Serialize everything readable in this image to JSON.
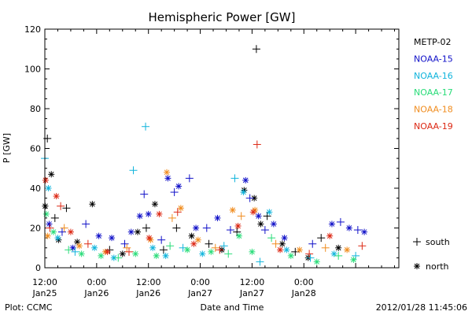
{
  "chart_data": {
    "type": "scatter",
    "title": "Hemispheric Power [GW]",
    "ylabel": "P [GW]",
    "xlabel": "Date and Time",
    "ylim": [
      0,
      120
    ],
    "yticks": [
      0,
      20,
      40,
      60,
      80,
      100,
      120
    ],
    "xlim": [
      "2012-01-25 12:00",
      "2012-01-28 22:00"
    ],
    "xticks": [
      {
        "time": "2012-01-25 12:00",
        "label1": "12:00",
        "label2": "Jan25"
      },
      {
        "time": "2012-01-26 00:00",
        "label1": "0:00",
        "label2": "Jan26"
      },
      {
        "time": "2012-01-26 12:00",
        "label1": "12:00",
        "label2": "Jan26"
      },
      {
        "time": "2012-01-27 00:00",
        "label1": "0:00",
        "label2": "Jan27"
      },
      {
        "time": "2012-01-27 12:00",
        "label1": "12:00",
        "label2": "Jan27"
      },
      {
        "time": "2012-01-28 00:00",
        "label1": "0:00",
        "label2": "Jan28"
      }
    ],
    "grid": false,
    "legend_position": "right",
    "series": [
      {
        "name": "METP-02",
        "color": "#000000",
        "points": [
          {
            "x": "2012-01-25 12:05",
            "y": 31,
            "hemi": "north"
          },
          {
            "x": "2012-01-25 12:35",
            "y": 65,
            "hemi": "south"
          },
          {
            "x": "2012-01-25 13:30",
            "y": 47,
            "hemi": "north"
          },
          {
            "x": "2012-01-25 14:20",
            "y": 25,
            "hemi": "south"
          },
          {
            "x": "2012-01-25 15:10",
            "y": 14,
            "hemi": "north"
          },
          {
            "x": "2012-01-25 17:00",
            "y": 30,
            "hemi": "south"
          },
          {
            "x": "2012-01-25 19:30",
            "y": 13,
            "hemi": "north"
          },
          {
            "x": "2012-01-25 23:00",
            "y": 32,
            "hemi": "north"
          },
          {
            "x": "2012-01-26 03:00",
            "y": 9,
            "hemi": "south"
          },
          {
            "x": "2012-01-26 06:00",
            "y": 7,
            "hemi": "north"
          },
          {
            "x": "2012-01-26 09:30",
            "y": 18,
            "hemi": "north"
          },
          {
            "x": "2012-01-26 11:30",
            "y": 20,
            "hemi": "south"
          },
          {
            "x": "2012-01-26 13:30",
            "y": 32,
            "hemi": "north"
          },
          {
            "x": "2012-01-26 15:30",
            "y": 9,
            "hemi": "south"
          },
          {
            "x": "2012-01-26 18:30",
            "y": 20,
            "hemi": "south"
          },
          {
            "x": "2012-01-26 22:00",
            "y": 16,
            "hemi": "north"
          },
          {
            "x": "2012-01-27 02:00",
            "y": 12,
            "hemi": "south"
          },
          {
            "x": "2012-01-27 05:00",
            "y": 9,
            "hemi": "north"
          },
          {
            "x": "2012-01-27 08:30",
            "y": 18,
            "hemi": "south"
          },
          {
            "x": "2012-01-27 10:10",
            "y": 39,
            "hemi": "north"
          },
          {
            "x": "2012-01-27 12:30",
            "y": 35,
            "hemi": "north"
          },
          {
            "x": "2012-01-27 13:00",
            "y": 110,
            "hemi": "south"
          },
          {
            "x": "2012-01-27 14:00",
            "y": 22,
            "hemi": "north"
          },
          {
            "x": "2012-01-27 15:30",
            "y": 26,
            "hemi": "south"
          },
          {
            "x": "2012-01-27 19:00",
            "y": 12,
            "hemi": "north"
          },
          {
            "x": "2012-01-27 22:00",
            "y": 8,
            "hemi": "south"
          },
          {
            "x": "2012-01-28 01:00",
            "y": 5,
            "hemi": "north"
          },
          {
            "x": "2012-01-28 04:00",
            "y": 15,
            "hemi": "south"
          },
          {
            "x": "2012-01-28 08:00",
            "y": 10,
            "hemi": "north"
          }
        ]
      },
      {
        "name": "NOAA-15",
        "color": "#1010c8",
        "points": [
          {
            "x": "2012-01-25 13:00",
            "y": 22,
            "hemi": "north"
          },
          {
            "x": "2012-01-25 16:00",
            "y": 18,
            "hemi": "south"
          },
          {
            "x": "2012-01-25 18:30",
            "y": 10,
            "hemi": "north"
          },
          {
            "x": "2012-01-25 21:30",
            "y": 22,
            "hemi": "south"
          },
          {
            "x": "2012-01-26 00:30",
            "y": 16,
            "hemi": "north"
          },
          {
            "x": "2012-01-26 03:30",
            "y": 15,
            "hemi": "north"
          },
          {
            "x": "2012-01-26 06:30",
            "y": 12,
            "hemi": "south"
          },
          {
            "x": "2012-01-26 08:00",
            "y": 18,
            "hemi": "north"
          },
          {
            "x": "2012-01-26 10:00",
            "y": 26,
            "hemi": "north"
          },
          {
            "x": "2012-01-26 11:00",
            "y": 37,
            "hemi": "south"
          },
          {
            "x": "2012-01-26 12:00",
            "y": 27,
            "hemi": "north"
          },
          {
            "x": "2012-01-26 15:00",
            "y": 14,
            "hemi": "south"
          },
          {
            "x": "2012-01-26 16:30",
            "y": 45,
            "hemi": "north"
          },
          {
            "x": "2012-01-26 18:00",
            "y": 38,
            "hemi": "south"
          },
          {
            "x": "2012-01-26 19:00",
            "y": 41,
            "hemi": "north"
          },
          {
            "x": "2012-01-26 21:30",
            "y": 45,
            "hemi": "south"
          },
          {
            "x": "2012-01-26 23:00",
            "y": 20,
            "hemi": "north"
          },
          {
            "x": "2012-01-27 01:30",
            "y": 20,
            "hemi": "south"
          },
          {
            "x": "2012-01-27 04:00",
            "y": 25,
            "hemi": "north"
          },
          {
            "x": "2012-01-27 07:00",
            "y": 19,
            "hemi": "south"
          },
          {
            "x": "2012-01-27 10:30",
            "y": 44,
            "hemi": "north"
          },
          {
            "x": "2012-01-27 11:30",
            "y": 35,
            "hemi": "south"
          },
          {
            "x": "2012-01-27 13:30",
            "y": 26,
            "hemi": "north"
          },
          {
            "x": "2012-01-27 15:00",
            "y": 19,
            "hemi": "south"
          },
          {
            "x": "2012-01-27 17:00",
            "y": 22,
            "hemi": "north"
          },
          {
            "x": "2012-01-27 19:30",
            "y": 15,
            "hemi": "north"
          },
          {
            "x": "2012-01-28 02:00",
            "y": 12,
            "hemi": "south"
          },
          {
            "x": "2012-01-28 06:30",
            "y": 22,
            "hemi": "north"
          },
          {
            "x": "2012-01-28 08:30",
            "y": 23,
            "hemi": "south"
          },
          {
            "x": "2012-01-28 10:30",
            "y": 20,
            "hemi": "north"
          },
          {
            "x": "2012-01-28 12:30",
            "y": 19,
            "hemi": "south"
          },
          {
            "x": "2012-01-28 14:00",
            "y": 18,
            "hemi": "north"
          }
        ]
      },
      {
        "name": "NOAA-16",
        "color": "#10b4dc",
        "points": [
          {
            "x": "2012-01-25 12:00",
            "y": 55,
            "hemi": "south"
          },
          {
            "x": "2012-01-25 12:50",
            "y": 40,
            "hemi": "north"
          },
          {
            "x": "2012-01-25 15:00",
            "y": 15,
            "hemi": "north"
          },
          {
            "x": "2012-01-25 19:00",
            "y": 8,
            "hemi": "south"
          },
          {
            "x": "2012-01-25 23:30",
            "y": 10,
            "hemi": "north"
          },
          {
            "x": "2012-01-26 04:00",
            "y": 5,
            "hemi": "north"
          },
          {
            "x": "2012-01-26 08:30",
            "y": 49,
            "hemi": "south"
          },
          {
            "x": "2012-01-26 11:20",
            "y": 71,
            "hemi": "south"
          },
          {
            "x": "2012-01-26 13:00",
            "y": 10,
            "hemi": "north"
          },
          {
            "x": "2012-01-26 16:00",
            "y": 6,
            "hemi": "north"
          },
          {
            "x": "2012-01-26 20:00",
            "y": 10,
            "hemi": "south"
          },
          {
            "x": "2012-01-27 00:30",
            "y": 7,
            "hemi": "north"
          },
          {
            "x": "2012-01-27 05:30",
            "y": 11,
            "hemi": "south"
          },
          {
            "x": "2012-01-27 08:00",
            "y": 45,
            "hemi": "south"
          },
          {
            "x": "2012-01-27 10:00",
            "y": 38,
            "hemi": "north"
          },
          {
            "x": "2012-01-27 13:50",
            "y": 3,
            "hemi": "south"
          },
          {
            "x": "2012-01-27 16:00",
            "y": 28,
            "hemi": "north"
          },
          {
            "x": "2012-01-27 20:00",
            "y": 9,
            "hemi": "north"
          },
          {
            "x": "2012-01-28 01:30",
            "y": 5,
            "hemi": "south"
          },
          {
            "x": "2012-01-28 07:00",
            "y": 7,
            "hemi": "north"
          },
          {
            "x": "2012-01-28 12:00",
            "y": 6,
            "hemi": "south"
          }
        ]
      },
      {
        "name": "NOAA-17",
        "color": "#28dc78",
        "points": [
          {
            "x": "2012-01-25 12:20",
            "y": 27,
            "hemi": "north"
          },
          {
            "x": "2012-01-25 14:00",
            "y": 18,
            "hemi": "north"
          },
          {
            "x": "2012-01-25 17:30",
            "y": 9,
            "hemi": "south"
          },
          {
            "x": "2012-01-25 20:30",
            "y": 7,
            "hemi": "north"
          },
          {
            "x": "2012-01-26 01:00",
            "y": 6,
            "hemi": "north"
          },
          {
            "x": "2012-01-26 05:00",
            "y": 5,
            "hemi": "south"
          },
          {
            "x": "2012-01-26 09:00",
            "y": 7,
            "hemi": "north"
          },
          {
            "x": "2012-01-26 13:50",
            "y": 6,
            "hemi": "north"
          },
          {
            "x": "2012-01-26 17:00",
            "y": 11,
            "hemi": "south"
          },
          {
            "x": "2012-01-26 21:00",
            "y": 9,
            "hemi": "north"
          },
          {
            "x": "2012-01-27 02:30",
            "y": 8,
            "hemi": "north"
          },
          {
            "x": "2012-01-27 06:30",
            "y": 7,
            "hemi": "south"
          },
          {
            "x": "2012-01-27 09:00",
            "y": 16,
            "hemi": "north"
          },
          {
            "x": "2012-01-27 12:00",
            "y": 8,
            "hemi": "north"
          },
          {
            "x": "2012-01-27 16:30",
            "y": 15,
            "hemi": "south"
          },
          {
            "x": "2012-01-27 21:00",
            "y": 6,
            "hemi": "north"
          },
          {
            "x": "2012-01-28 03:00",
            "y": 3,
            "hemi": "north"
          },
          {
            "x": "2012-01-28 08:00",
            "y": 6,
            "hemi": "south"
          },
          {
            "x": "2012-01-28 11:30",
            "y": 4,
            "hemi": "north"
          }
        ]
      },
      {
        "name": "NOAA-18",
        "color": "#f08c1e",
        "points": [
          {
            "x": "2012-01-25 12:40",
            "y": 16,
            "hemi": "north"
          },
          {
            "x": "2012-01-25 16:30",
            "y": 20,
            "hemi": "south"
          },
          {
            "x": "2012-01-25 20:00",
            "y": 11,
            "hemi": "north"
          },
          {
            "x": "2012-01-26 02:00",
            "y": 8,
            "hemi": "north"
          },
          {
            "x": "2012-01-26 07:00",
            "y": 10,
            "hemi": "south"
          },
          {
            "x": "2012-01-26 12:30",
            "y": 14,
            "hemi": "north"
          },
          {
            "x": "2012-01-26 16:15",
            "y": 48,
            "hemi": "north"
          },
          {
            "x": "2012-01-26 17:30",
            "y": 25,
            "hemi": "south"
          },
          {
            "x": "2012-01-26 19:30",
            "y": 30,
            "hemi": "north"
          },
          {
            "x": "2012-01-26 23:30",
            "y": 14,
            "hemi": "north"
          },
          {
            "x": "2012-01-27 03:30",
            "y": 10,
            "hemi": "south"
          },
          {
            "x": "2012-01-27 07:30",
            "y": 29,
            "hemi": "north"
          },
          {
            "x": "2012-01-27 09:30",
            "y": 26,
            "hemi": "south"
          },
          {
            "x": "2012-01-27 12:40",
            "y": 29,
            "hemi": "north"
          },
          {
            "x": "2012-01-27 17:30",
            "y": 12,
            "hemi": "south"
          },
          {
            "x": "2012-01-27 23:00",
            "y": 9,
            "hemi": "north"
          },
          {
            "x": "2012-01-28 05:00",
            "y": 10,
            "hemi": "south"
          },
          {
            "x": "2012-01-28 10:00",
            "y": 9,
            "hemi": "north"
          }
        ]
      },
      {
        "name": "NOAA-19",
        "color": "#dc2814",
        "points": [
          {
            "x": "2012-01-25 12:10",
            "y": 44,
            "hemi": "north"
          },
          {
            "x": "2012-01-25 13:10",
            "y": 20,
            "hemi": "south"
          },
          {
            "x": "2012-01-25 14:40",
            "y": 36,
            "hemi": "north"
          },
          {
            "x": "2012-01-25 15:40",
            "y": 31,
            "hemi": "south"
          },
          {
            "x": "2012-01-25 18:00",
            "y": 18,
            "hemi": "north"
          },
          {
            "x": "2012-01-25 22:00",
            "y": 12,
            "hemi": "south"
          },
          {
            "x": "2012-01-26 02:30",
            "y": 8,
            "hemi": "north"
          },
          {
            "x": "2012-01-26 07:30",
            "y": 8,
            "hemi": "south"
          },
          {
            "x": "2012-01-26 12:10",
            "y": 15,
            "hemi": "north"
          },
          {
            "x": "2012-01-26 14:30",
            "y": 27,
            "hemi": "north"
          },
          {
            "x": "2012-01-26 18:45",
            "y": 28,
            "hemi": "south"
          },
          {
            "x": "2012-01-26 22:30",
            "y": 12,
            "hemi": "north"
          },
          {
            "x": "2012-01-27 04:30",
            "y": 9,
            "hemi": "south"
          },
          {
            "x": "2012-01-27 08:45",
            "y": 21,
            "hemi": "north"
          },
          {
            "x": "2012-01-27 12:15",
            "y": 28,
            "hemi": "north"
          },
          {
            "x": "2012-01-27 13:10",
            "y": 62,
            "hemi": "south"
          },
          {
            "x": "2012-01-27 18:30",
            "y": 9,
            "hemi": "north"
          },
          {
            "x": "2012-01-28 01:15",
            "y": 7,
            "hemi": "south"
          },
          {
            "x": "2012-01-28 06:00",
            "y": 16,
            "hemi": "north"
          },
          {
            "x": "2012-01-28 13:30",
            "y": 11,
            "hemi": "south"
          }
        ]
      }
    ]
  },
  "legend": {
    "items": [
      "METP-02",
      "NOAA-15",
      "NOAA-16",
      "NOAA-17",
      "NOAA-18",
      "NOAA-19"
    ],
    "colors": [
      "#000000",
      "#1010c8",
      "#10b4dc",
      "#28dc78",
      "#f08c1e",
      "#dc2814"
    ],
    "south_label": "south",
    "north_label": "north"
  },
  "footer": {
    "plot_credit": "Plot: CCMC",
    "timestamp": "2012/01/28 11:45:06"
  }
}
